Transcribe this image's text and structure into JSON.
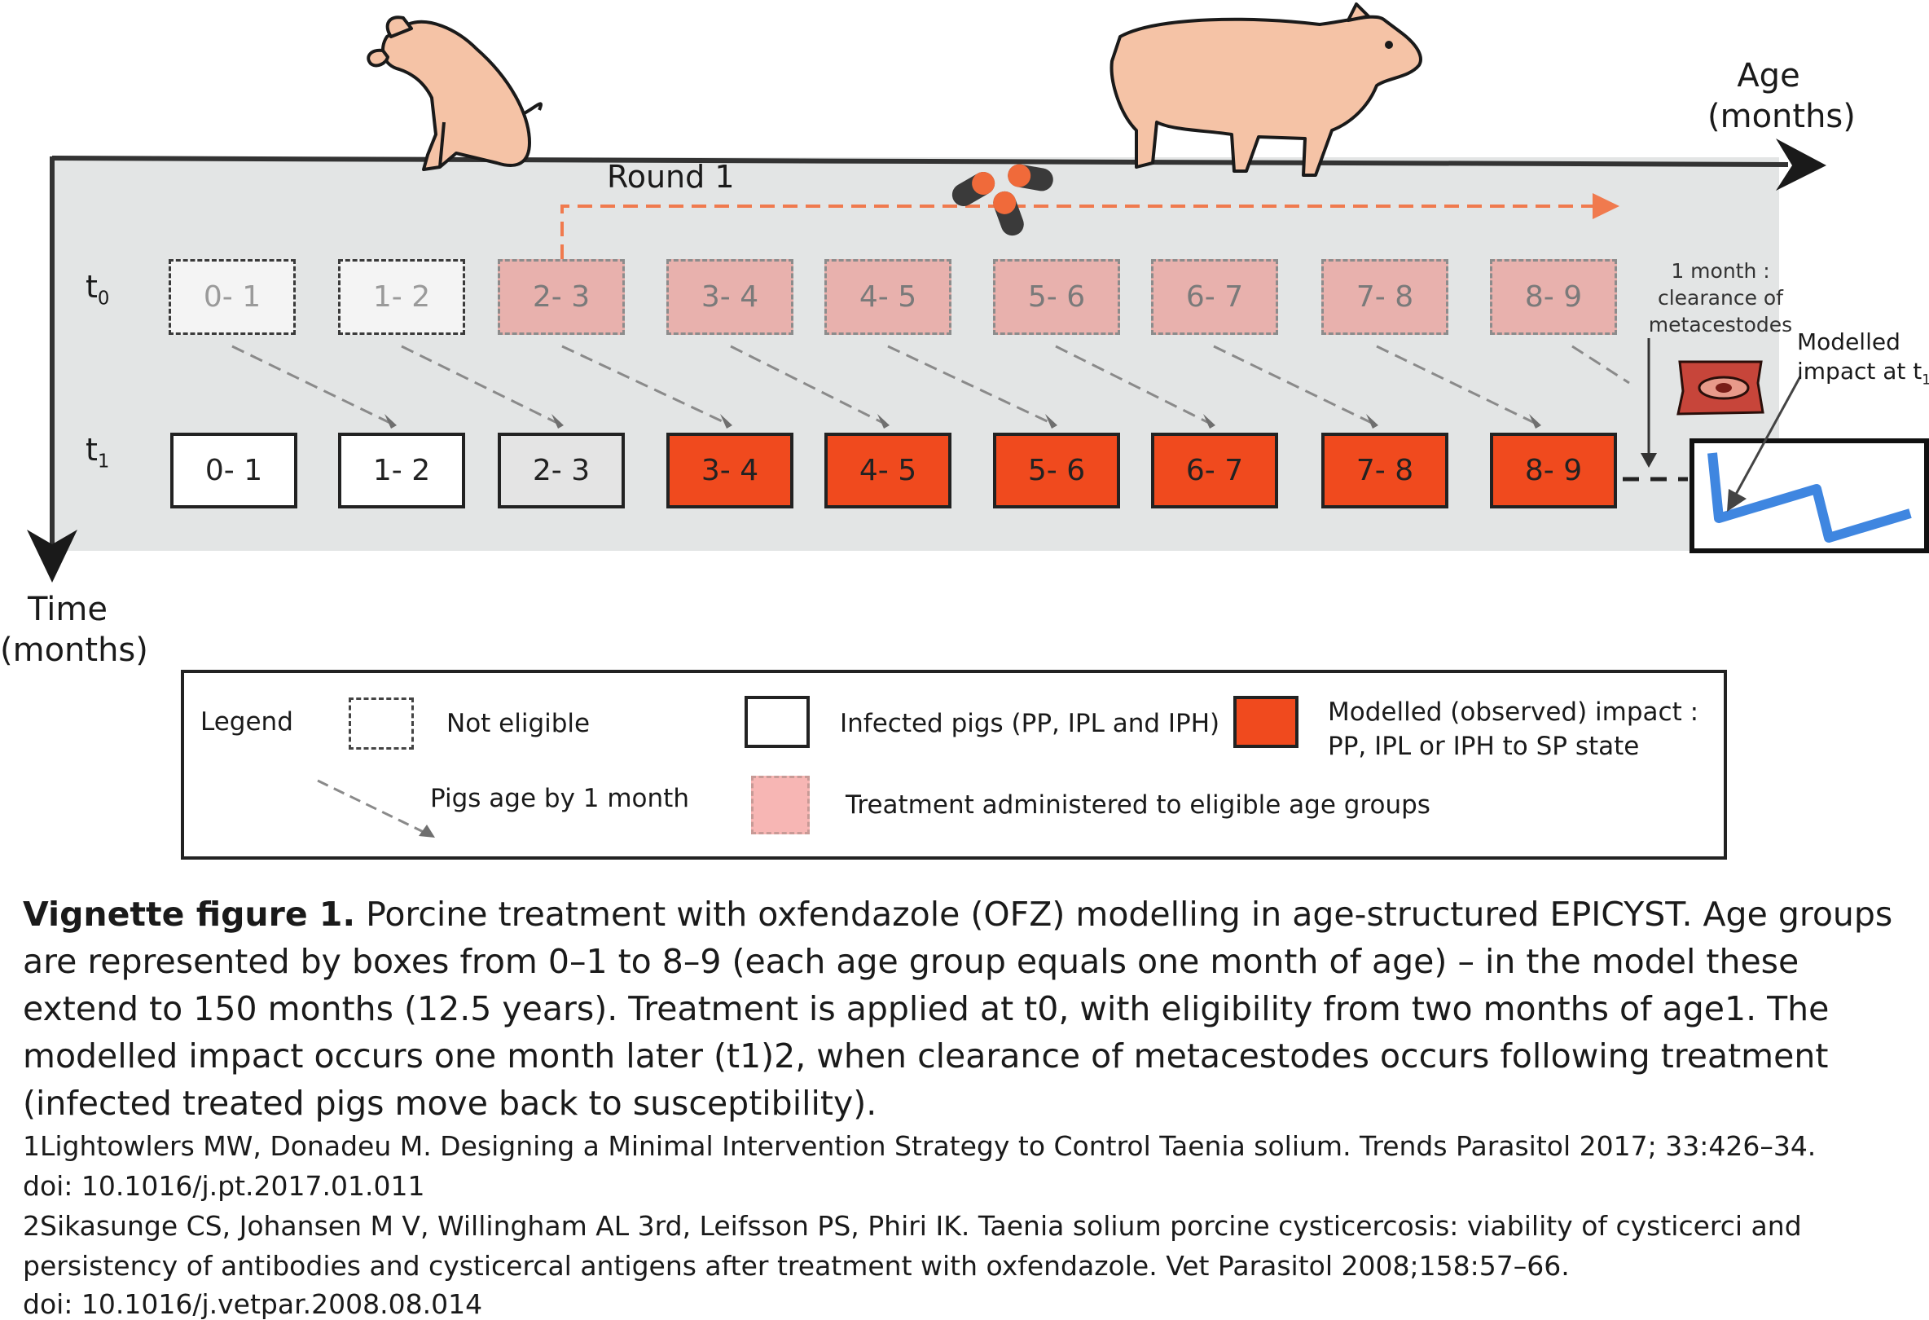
{
  "diagram": {
    "age_axis_label_line1": "Age",
    "age_axis_label_line2": "(months)",
    "time_axis_label_line1": "Time",
    "time_axis_label_line2": "(months)",
    "round_label": "Round 1",
    "row_t0": {
      "label": "t",
      "sub": "0"
    },
    "row_t1": {
      "label": "t",
      "sub": "1"
    },
    "age_groups": [
      "0- 1",
      "1- 2",
      "2- 3",
      "3- 4",
      "4- 5",
      "5- 6",
      "6- 7",
      "7- 8",
      "8- 9"
    ],
    "clearance_note": [
      "1 month :",
      "clearance of",
      "metacestodes"
    ],
    "modelled_impact_label": [
      "Modelled",
      "impact at t"
    ],
    "modelled_impact_sub": "1"
  },
  "legend": {
    "title": "Legend",
    "not_eligible": "Not eligible",
    "pigs_age": "Pigs age by 1 month",
    "infected_pigs": "Infected pigs (PP, IPL and IPH)",
    "treatment": "Treatment  administered to eligible age groups",
    "modelled_impact_line1": "Modelled (observed) impact :",
    "modelled_impact_line2": "PP, IPL or IPH to SP state"
  },
  "caption": {
    "bold": "Vignette figure 1.",
    "text": " Porcine treatment with oxfendazole (OFZ) modelling in age-structured EPICYST. Age groups are represented by boxes from 0–1 to 8–9 (each age group equals one month of age) – in the model these extend to 150 months (12.5 years). Treatment is applied at t0, with eligibility from two months of age1. The modelled impact occurs one month later (t1)2, when clearance of metacestodes occurs following treatment (infected treated pigs move back to susceptibility)."
  },
  "references": {
    "ref1_line1": "1Lightowlers MW, Donadeu M. Designing a Minimal Intervention Strategy to Control Taenia solium. Trends Parasitol 2017; 33:426–34.",
    "ref1_line2": "doi: 10.1016/j.pt.2017.01.011",
    "ref2_line1": "2Sikasunge CS, Johansen M V, Willingham AL 3rd, Leifsson PS, Phiri IK. Taenia solium porcine cysticercosis: viability of cysticerci and",
    "ref2_line2": "persistency of antibodies and cysticercal antigens after treatment with oxfendazole. Vet Parasitol 2008;158:57–66.",
    "ref2_line3": "doi: 10.1016/j.vetpar.2008.08.014"
  },
  "colors": {
    "panel": "#e3e5e5",
    "treatment_box": "#e8b1ad",
    "impact_box": "#f04a1e",
    "dashed_arrow": "#f07a4e",
    "impact_line": "#3f86e0"
  },
  "icons": [
    "pig-sitting-icon",
    "pig-standing-icon",
    "pill-capsules-icon",
    "metacestode-tissue-icon",
    "impact-graph-icon"
  ]
}
